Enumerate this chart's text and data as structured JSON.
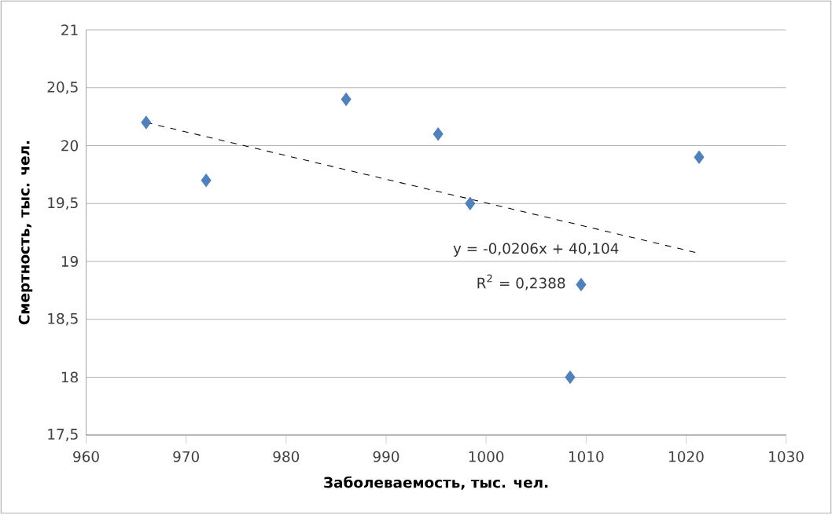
{
  "chart_data": {
    "type": "scatter",
    "xlabel": "Заболеваемость, тыс. чел.",
    "ylabel": "Смертность, тыс. чел.",
    "xlim": [
      960,
      1030
    ],
    "xticks": [
      960,
      970,
      980,
      990,
      1000,
      1010,
      1020,
      1030
    ],
    "ylim": [
      17.5,
      21
    ],
    "yticks": [
      {
        "value": 17.5,
        "label": "17,5"
      },
      {
        "value": 18,
        "label": "18"
      },
      {
        "value": 18.5,
        "label": "18,5"
      },
      {
        "value": 19,
        "label": "19"
      },
      {
        "value": 19.5,
        "label": "19,5"
      },
      {
        "value": 20,
        "label": "20"
      },
      {
        "value": 20.5,
        "label": "20,5"
      },
      {
        "value": 21,
        "label": "21"
      }
    ],
    "grid": "y",
    "marker": "diamond",
    "series": [
      {
        "color": "#4f81bd",
        "x": [
          966,
          972,
          986,
          995.2,
          998.4,
          1009.5,
          1008.4,
          1021.3
        ],
        "values": [
          20.2,
          19.7,
          20.4,
          20.1,
          19.5,
          18.8,
          18.0,
          19.9
        ]
      },
      {
        "type": "line",
        "color": "#000000",
        "line_style": "dashed",
        "marker": "none",
        "x": [
          966,
          1021.3
        ],
        "values": [
          20.2,
          19.07
        ]
      }
    ],
    "annotations": [
      "y = -0,0206x + 40,104",
      "R$^{2}$ = 0,2388"
    ]
  }
}
